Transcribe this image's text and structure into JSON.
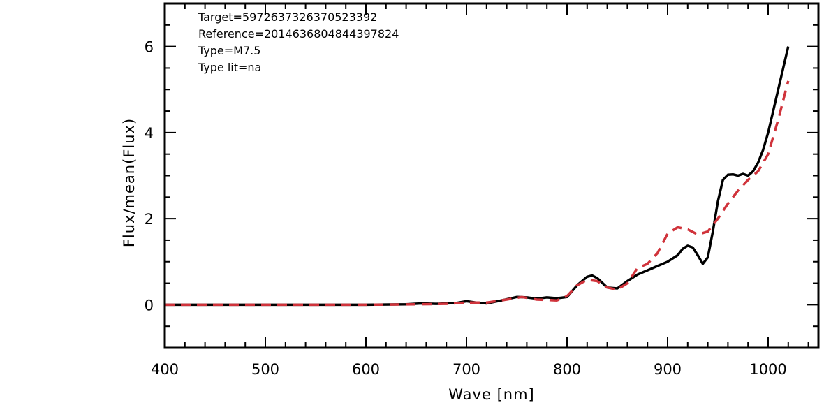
{
  "chart_data": {
    "type": "line",
    "xlabel": "Wave [nm]",
    "ylabel": "Flux/mean(Flux)",
    "xlim": [
      400,
      1050
    ],
    "ylim": [
      -1,
      7
    ],
    "x_ticks": [
      400,
      500,
      600,
      700,
      800,
      900,
      1000
    ],
    "y_ticks": [
      0,
      2,
      4,
      6
    ],
    "grid": false,
    "legend": "none",
    "annotations": [
      "Target=5972637326370523392",
      "Reference=2014636804844397824",
      "Type=M7.5",
      "Type lit=na"
    ],
    "series": [
      {
        "style": "solid",
        "color": "#000000",
        "x": [
          400,
          500,
          600,
          640,
          655,
          670,
          690,
          700,
          710,
          720,
          735,
          750,
          760,
          770,
          780,
          790,
          800,
          810,
          820,
          825,
          830,
          840,
          850,
          860,
          870,
          880,
          890,
          900,
          910,
          915,
          920,
          925,
          930,
          935,
          940,
          945,
          950,
          955,
          960,
          965,
          970,
          975,
          980,
          985,
          990,
          995,
          1000,
          1005,
          1010,
          1015,
          1020
        ],
        "y": [
          0,
          0,
          0,
          0.01,
          0.03,
          0.02,
          0.04,
          0.08,
          0.05,
          0.03,
          0.1,
          0.18,
          0.17,
          0.14,
          0.17,
          0.15,
          0.18,
          0.45,
          0.65,
          0.68,
          0.62,
          0.4,
          0.38,
          0.55,
          0.7,
          0.8,
          0.9,
          1.0,
          1.15,
          1.3,
          1.37,
          1.33,
          1.15,
          0.95,
          1.1,
          1.7,
          2.4,
          2.9,
          3.02,
          3.03,
          3.0,
          3.04,
          3.0,
          3.1,
          3.3,
          3.6,
          4.0,
          4.5,
          5.0,
          5.5,
          6.0
        ]
      },
      {
        "style": "dashed",
        "color": "#d0333b",
        "x": [
          400,
          500,
          600,
          650,
          680,
          700,
          720,
          740,
          755,
          770,
          790,
          800,
          810,
          820,
          830,
          840,
          850,
          860,
          870,
          880,
          890,
          900,
          910,
          920,
          930,
          940,
          950,
          960,
          970,
          980,
          990,
          1000,
          1010,
          1020
        ],
        "y": [
          0,
          0,
          0,
          0.01,
          0.02,
          0.05,
          0.05,
          0.12,
          0.18,
          0.12,
          0.1,
          0.2,
          0.45,
          0.58,
          0.55,
          0.4,
          0.35,
          0.5,
          0.85,
          0.95,
          1.2,
          1.65,
          1.8,
          1.75,
          1.63,
          1.7,
          2.0,
          2.35,
          2.65,
          2.9,
          3.1,
          3.5,
          4.3,
          5.2
        ]
      }
    ]
  }
}
